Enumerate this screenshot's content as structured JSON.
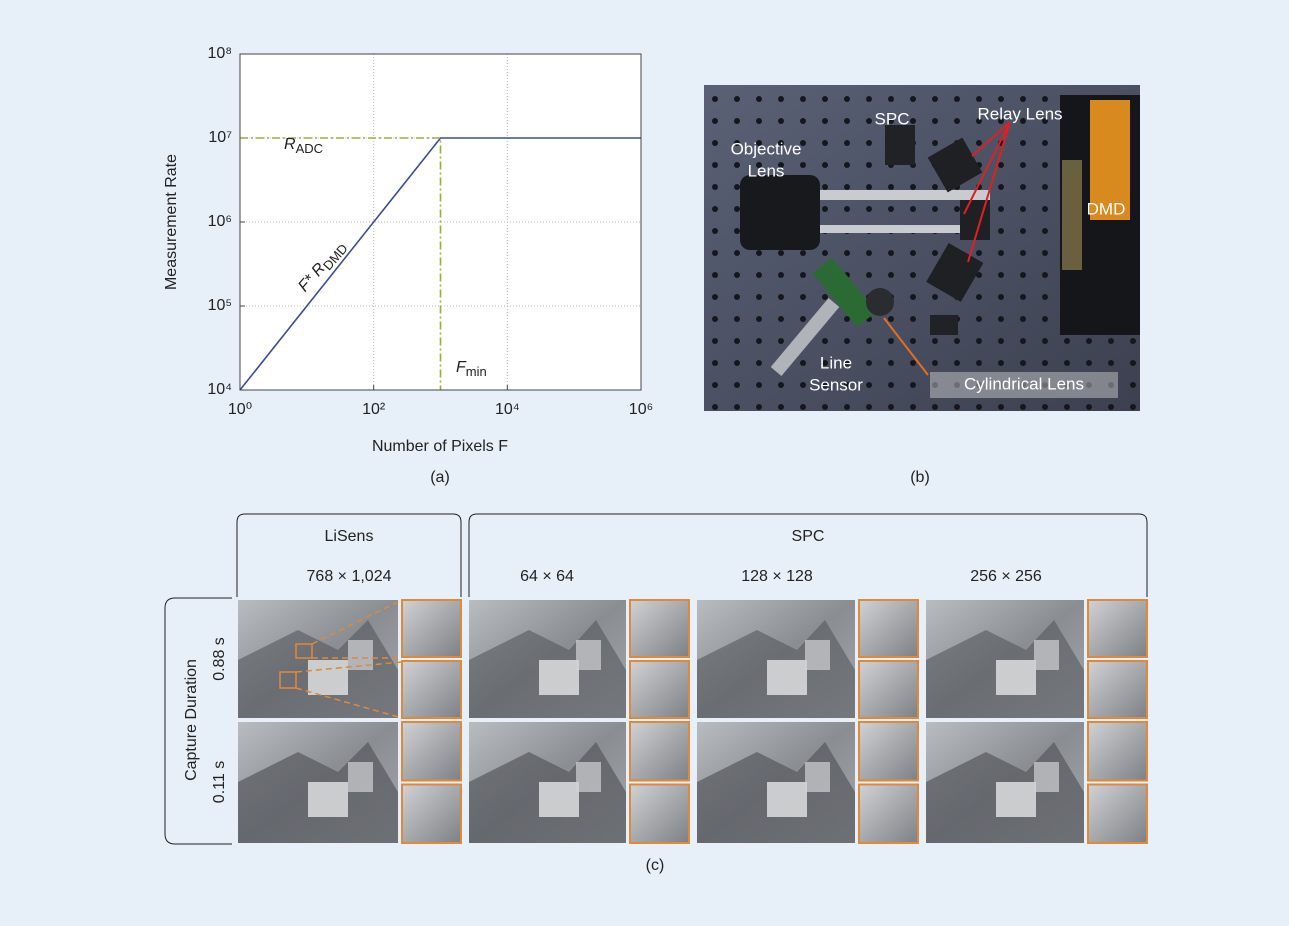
{
  "chart_data": {
    "type": "line",
    "xlabel": "Number of Pixels F",
    "ylabel": "Measurement Rate",
    "xscale": "log",
    "yscale": "log",
    "grid": true,
    "xlim": [
      1,
      1000000
    ],
    "ylim": [
      10000,
      100000000
    ],
    "xticks": [
      {
        "value": 1,
        "label": "10⁰"
      },
      {
        "value": 100,
        "label": "10²"
      },
      {
        "value": 10000,
        "label": "10⁴"
      },
      {
        "value": 1000000,
        "label": "10⁶"
      }
    ],
    "yticks": [
      {
        "value": 10000,
        "label": "10⁴"
      },
      {
        "value": 100000,
        "label": "10⁵"
      },
      {
        "value": 1000000,
        "label": "10⁶"
      },
      {
        "value": 10000000,
        "label": "10⁷"
      },
      {
        "value": 100000000,
        "label": "10⁸"
      }
    ],
    "series": [
      {
        "color": "#3a4c9c",
        "style": "solid",
        "x": [
          1,
          1000,
          1000000
        ],
        "values": [
          10000,
          10000000,
          10000000
        ]
      },
      {
        "color": "#9aae3a",
        "style": "dashdot",
        "x": [
          1,
          1000,
          1000
        ],
        "values": [
          10000000,
          10000000,
          10000
        ]
      }
    ],
    "annotations": [
      {
        "text": "R",
        "sub": "ADC"
      },
      {
        "text": "F* R",
        "sub": "DMD"
      },
      {
        "text": "F",
        "sub": "min"
      }
    ],
    "caption": "(a)"
  },
  "photo": {
    "labels": {
      "spc": "SPC",
      "relay": "Relay Lens",
      "objective": [
        "Objective",
        "Lens"
      ],
      "dmd": "DMD",
      "line_sensor": [
        "Line",
        "Sensor"
      ],
      "cylindrical": "Cylindrical Lens"
    },
    "caption": "(b)"
  },
  "comparison": {
    "groups": [
      {
        "name": "LiSens",
        "resolutions": [
          "768 × 1,024"
        ]
      },
      {
        "name": "SPC",
        "resolutions": [
          "64 × 64",
          "128 × 128",
          "256 × 256"
        ]
      }
    ],
    "row_title": "Capture Duration",
    "rows": [
      "0.88 s",
      "0.11 s"
    ],
    "caption": "(c)"
  }
}
